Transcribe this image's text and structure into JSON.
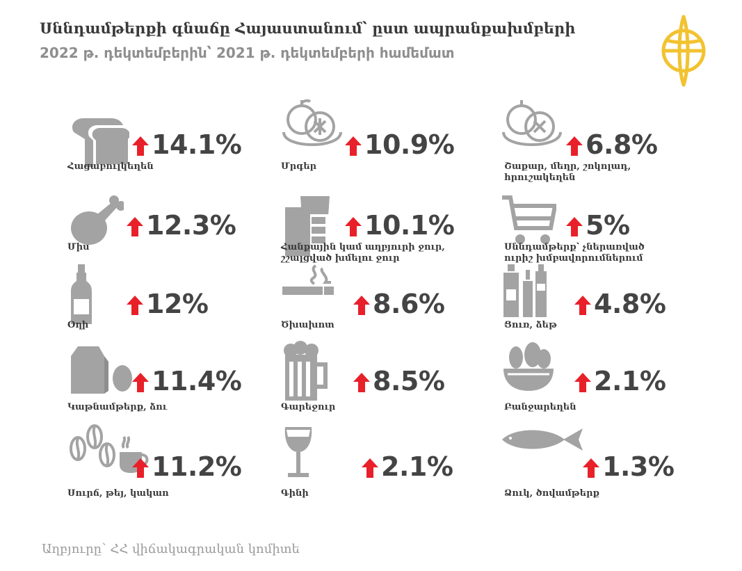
{
  "title": "Սննդամթերքի գնաճը Հայաստանում՝ ըստ ապրանքախմբերի",
  "subtitle": "2022 թ. դեկտեմբերին՝ 2021 թ. դեկտեմբերի համեմատ",
  "source": "Աղբյուրը՝ ՀՀ վիճակագրական կոմիտե",
  "colors": {
    "arrow": "#e8202a",
    "icon": "#a3a3a3",
    "logo": "#f2c230"
  },
  "chart_data": {
    "type": "table",
    "unit": "%",
    "categories": [
      "Հացաբուլկեղեն",
      "Միս",
      "Օղի",
      "Կաթնամթերք, ձու",
      "Սուրճ, թեյ, կակաո",
      "Մրգեր",
      "Հանքային կամ աղբյուրի ջուր, շշալցված խմելու ջուր",
      "Ծխախոտ",
      "Գարեջուր",
      "Գինի",
      "Շաքար, մեղր, շոկոլադ, հրուշակեղեն",
      "Սննդամթերք՝ չներառված ուրիշ խմբավորումներում",
      "Ցուռ, ձեթ",
      "Բանջարեղեն",
      "Ձուկ, ծովամթերք"
    ],
    "values": [
      14.1,
      12.3,
      12,
      11.4,
      11.2,
      10.9,
      10.1,
      8.6,
      8.5,
      2.1,
      6.8,
      5,
      4.8,
      2.1,
      1.3
    ],
    "value_labels": [
      "14.1%",
      "12.3%",
      "12%",
      "11.4%",
      "11.2%",
      "10.9%",
      "10.1%",
      "8.6%",
      "8.5%",
      "2.1%",
      "6.8%",
      "5%",
      "4.8%",
      "2.1%",
      "1.3%"
    ],
    "direction": "up",
    "items": [
      {
        "label": [
          "Հացաբուլկեղեն"
        ],
        "value": "14.1%",
        "icon": "bread-icon"
      },
      {
        "label": [
          "Միս"
        ],
        "value": "12.3%",
        "icon": "chicken-leg-icon"
      },
      {
        "label": [
          "Օղի"
        ],
        "value": "12%",
        "icon": "vodka-bottle-icon"
      },
      {
        "label": [
          "Կաթնամթերք, ձու"
        ],
        "value": "11.4%",
        "icon": "milk-egg-icon"
      },
      {
        "label": [
          "Սուրճ, թեյ, կակաո"
        ],
        "value": "11.2%",
        "icon": "coffee-icon"
      },
      {
        "label": [
          "Մրգեր"
        ],
        "value": "10.9%",
        "icon": "fruit-plate-icon"
      },
      {
        "label": [
          "Հանքային կամ աղբյուրի ջուր,",
          "շշալցված խմելու ջուր"
        ],
        "value": "10.1%",
        "icon": "water-glass-icon"
      },
      {
        "label": [
          "Ծխախոտ"
        ],
        "value": "8.6%",
        "icon": "cigarette-icon"
      },
      {
        "label": [
          "Գարեջուր"
        ],
        "value": "8.5%",
        "icon": "beer-mug-icon"
      },
      {
        "label": [
          "Գինի"
        ],
        "value": "2.1%",
        "icon": "wine-glass-icon"
      },
      {
        "label": [
          "Շաքար, մեղր, շոկոլադ,",
          "հրուշակեղեն"
        ],
        "value": "6.8%",
        "icon": "sweets-plate-icon"
      },
      {
        "label": [
          "Սննդամթերք՝ չներառված",
          "ուրիշ խմբավորումներում"
        ],
        "value": "5%",
        "icon": "shopping-cart-icon"
      },
      {
        "label": [
          "Ցուռ, ձեթ"
        ],
        "value": "4.8%",
        "icon": "oil-bottles-icon"
      },
      {
        "label": [
          "Բանջարեղեն"
        ],
        "value": "2.1%",
        "icon": "vegetable-bowl-icon"
      },
      {
        "label": [
          "Ձուկ, ծովամթերք"
        ],
        "value": "1.3%",
        "icon": "fish-icon"
      }
    ]
  }
}
